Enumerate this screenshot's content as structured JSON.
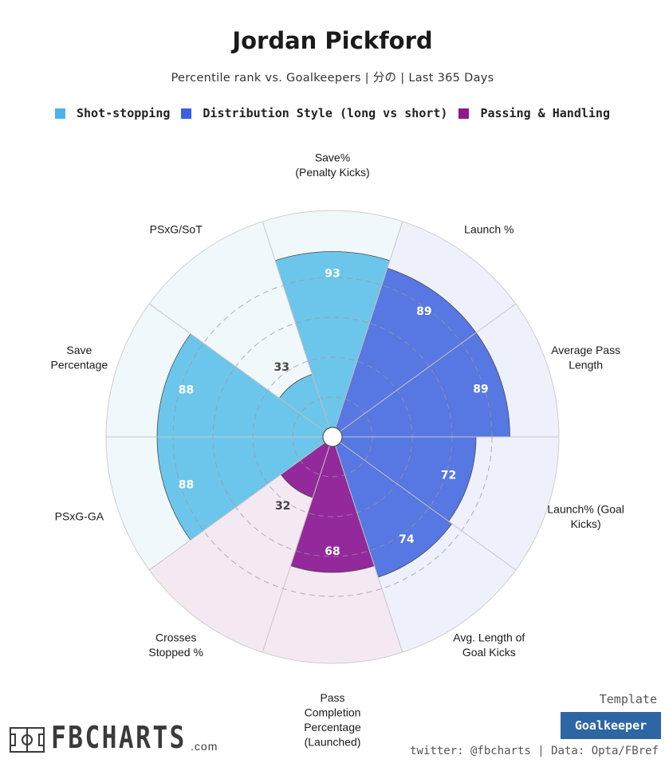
{
  "chart_data": {
    "type": "polar-bar",
    "title": "Jordan Pickford",
    "subtitle": "Percentile rank vs. Goalkeepers | 分の | Last 365 Days",
    "rlim": [
      0,
      100
    ],
    "gridlines": [
      20,
      40,
      60,
      80
    ],
    "legend": [
      {
        "name": "Shot-stopping",
        "color": "#4db3e6"
      },
      {
        "name": "Distribution Style (long vs short)",
        "color": "#3b5fe0"
      },
      {
        "name": "Passing & Handling",
        "color": "#8b1a8b"
      }
    ],
    "metrics": [
      {
        "label": "Save%\n(Penalty Kicks)",
        "value": 93,
        "group": 0
      },
      {
        "label": "Launch %",
        "value": 89,
        "group": 1
      },
      {
        "label": "Average Pass\nLength",
        "value": 89,
        "group": 1
      },
      {
        "label": "Launch% (Goal\nKicks)",
        "value": 72,
        "group": 1
      },
      {
        "label": "Avg. Length of\nGoal Kicks",
        "value": 74,
        "group": 1
      },
      {
        "label": "Pass\nCompletion\nPercentage\n(Launched)",
        "value": 68,
        "group": 2
      },
      {
        "label": "Crosses\nStopped %",
        "value": 32,
        "group": 2
      },
      {
        "label": "PSxG-GA",
        "value": 88,
        "group": 0
      },
      {
        "label": "Save\nPercentage",
        "value": 88,
        "group": 0
      },
      {
        "label": "PSxG/SoT",
        "value": 33,
        "group": 0
      }
    ],
    "bar_colors": [
      "#6cc6eb",
      "#5777e3",
      "#93299b"
    ],
    "bg_colors": [
      "#f0f8fb",
      "#eef0fb",
      "#f4e9f3"
    ]
  },
  "footer": {
    "template_label": "Template",
    "template_value": "Goalkeeper",
    "credits": "twitter: @fbcharts | Data: Opta/FBref",
    "logo_text": "FBCHARTS",
    "logo_suffix": ".com"
  }
}
